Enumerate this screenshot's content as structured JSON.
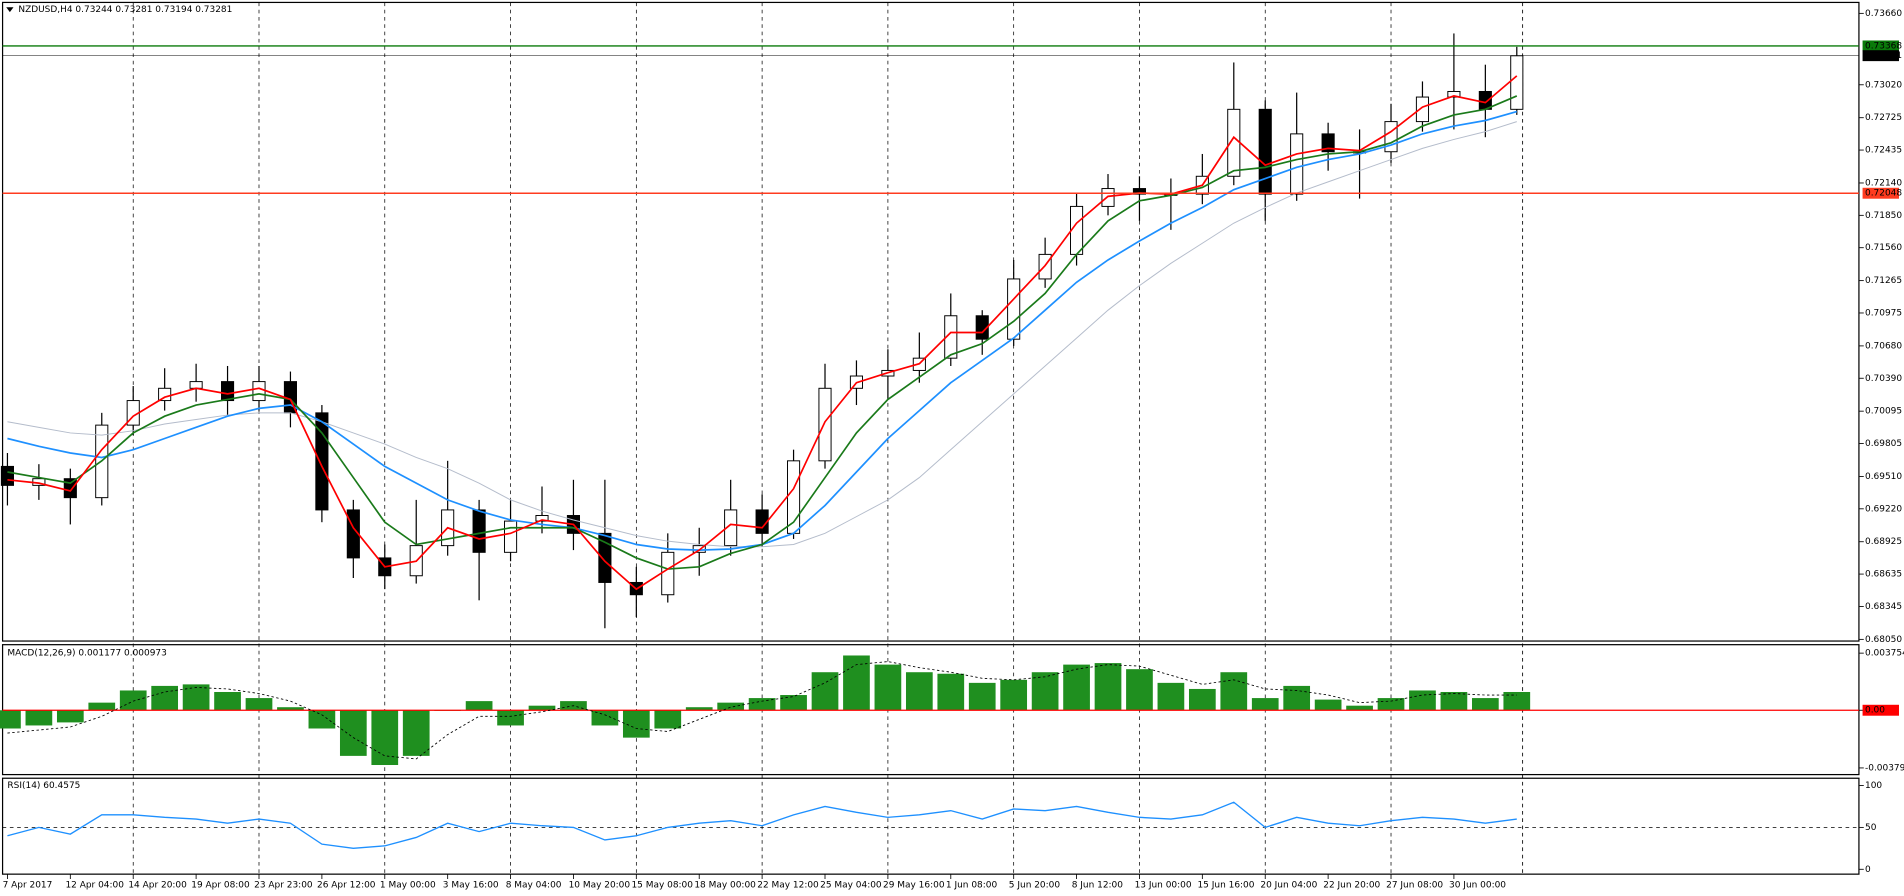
{
  "chart_data": [
    {
      "type": "candlestick",
      "title": "NZDUSD,H4  0.73244 0.73281 0.73194 0.73281",
      "categories": [
        "7 Apr 2017",
        null,
        "12 Apr 04:00",
        null,
        "14 Apr 20:00",
        null,
        "19 Apr 08:00",
        null,
        "23 Apr 23:00",
        null,
        "26 Apr 12:00",
        null,
        "1 May 00:00",
        null,
        "3 May 16:00",
        null,
        "8 May 04:00",
        null,
        "10 May 20:00",
        null,
        "15 May 08:00",
        null,
        "18 May 00:00",
        null,
        "22 May 12:00",
        null,
        "25 May 04:00",
        null,
        "29 May 16:00",
        null,
        "1 Jun 08:00",
        null,
        "5 Jun 20:00",
        null,
        "8 Jun 12:00",
        null,
        "13 Jun 00:00",
        null,
        "15 Jun 16:00",
        null,
        "20 Jun 04:00",
        null,
        "22 Jun 20:00",
        null,
        "27 Jun 08:00",
        null,
        "30 Jun 00:00",
        null,
        null
      ],
      "open": [
        0.696,
        0.6943,
        0.6949,
        0.6932,
        0.6997,
        0.7019,
        0.703,
        0.7036,
        0.7019,
        0.7036,
        0.7008,
        0.6921,
        0.6878,
        0.6862,
        0.6889,
        0.6921,
        0.6883,
        0.6911,
        0.6916,
        0.69,
        0.6856,
        0.6845,
        0.6883,
        0.6889,
        0.6921,
        0.69,
        0.6965,
        0.703,
        0.7041,
        0.7046,
        0.7057,
        0.7095,
        0.7074,
        0.7128,
        0.715,
        0.7193,
        0.7209,
        0.7204,
        0.7204,
        0.722,
        0.728,
        0.7204,
        0.7258,
        0.7242,
        0.7242,
        0.7269,
        0.7291,
        0.7296,
        0.728
      ],
      "high": [
        0.6972,
        0.6962,
        0.6958,
        0.7008,
        0.7032,
        0.7048,
        0.7052,
        0.705,
        0.705,
        0.7045,
        0.7015,
        0.693,
        0.689,
        0.693,
        0.6965,
        0.693,
        0.693,
        0.6942,
        0.6948,
        0.6948,
        0.687,
        0.69,
        0.6905,
        0.6948,
        0.6935,
        0.6975,
        0.7052,
        0.7055,
        0.7065,
        0.708,
        0.7115,
        0.71,
        0.7145,
        0.7165,
        0.7205,
        0.7222,
        0.722,
        0.7218,
        0.724,
        0.7322,
        0.7288,
        0.7295,
        0.7268,
        0.7262,
        0.7285,
        0.7305,
        0.7348,
        0.732,
        0.7336
      ],
      "low": [
        0.6925,
        0.693,
        0.6908,
        0.6925,
        0.6988,
        0.701,
        0.7018,
        0.7005,
        0.701,
        0.6995,
        0.691,
        0.686,
        0.685,
        0.6855,
        0.688,
        0.684,
        0.6875,
        0.69,
        0.6885,
        0.6815,
        0.6825,
        0.6838,
        0.6862,
        0.688,
        0.6888,
        0.6895,
        0.6958,
        0.7015,
        0.702,
        0.7035,
        0.705,
        0.706,
        0.7068,
        0.712,
        0.714,
        0.7185,
        0.718,
        0.7172,
        0.7195,
        0.7212,
        0.718,
        0.7198,
        0.7225,
        0.72,
        0.7232,
        0.726,
        0.7262,
        0.7255,
        0.7275
      ],
      "close": [
        0.6943,
        0.6949,
        0.6932,
        0.6997,
        0.7019,
        0.703,
        0.7036,
        0.7019,
        0.7036,
        0.7008,
        0.6921,
        0.6878,
        0.6862,
        0.6889,
        0.6921,
        0.6883,
        0.6911,
        0.6916,
        0.69,
        0.6856,
        0.6845,
        0.6883,
        0.6889,
        0.6921,
        0.69,
        0.6965,
        0.703,
        0.7041,
        0.7046,
        0.7057,
        0.7095,
        0.7074,
        0.7128,
        0.715,
        0.7193,
        0.7209,
        0.7204,
        0.7204,
        0.722,
        0.728,
        0.7204,
        0.7258,
        0.7242,
        0.7242,
        0.7269,
        0.7291,
        0.7296,
        0.728,
        0.7328
      ],
      "lines": [
        {
          "color": "#b4bccb",
          "values": [
            0.7,
            0.6995,
            0.699,
            0.6988,
            0.6992,
            0.6998,
            0.7002,
            0.7006,
            0.7008,
            0.7008,
            0.7,
            0.699,
            0.698,
            0.6968,
            0.6958,
            0.6945,
            0.693,
            0.692,
            0.6912,
            0.6905,
            0.6898,
            0.6893,
            0.689,
            0.6888,
            0.6888,
            0.689,
            0.69,
            0.6915,
            0.693,
            0.695,
            0.6975,
            0.7,
            0.7025,
            0.705,
            0.7075,
            0.71,
            0.7122,
            0.7142,
            0.716,
            0.7178,
            0.7192,
            0.7205,
            0.7215,
            0.7225,
            0.7235,
            0.7245,
            0.7253,
            0.726,
            0.7269
          ]
        },
        {
          "color": "#1e90ff",
          "values": [
            0.6985,
            0.6978,
            0.6972,
            0.6968,
            0.6975,
            0.6985,
            0.6995,
            0.7005,
            0.7012,
            0.7015,
            0.7,
            0.698,
            0.696,
            0.6945,
            0.693,
            0.692,
            0.6912,
            0.6908,
            0.6905,
            0.6898,
            0.689,
            0.6886,
            0.6885,
            0.6886,
            0.689,
            0.69,
            0.6925,
            0.6955,
            0.6985,
            0.701,
            0.7035,
            0.7055,
            0.7075,
            0.71,
            0.7125,
            0.7145,
            0.7162,
            0.7178,
            0.7192,
            0.7208,
            0.7218,
            0.7228,
            0.7235,
            0.724,
            0.7248,
            0.7258,
            0.7265,
            0.727,
            0.7278
          ]
        },
        {
          "color": "#1a7a1a",
          "values": [
            0.6955,
            0.695,
            0.6945,
            0.6965,
            0.699,
            0.7005,
            0.7015,
            0.702,
            0.7025,
            0.702,
            0.699,
            0.695,
            0.691,
            0.689,
            0.6895,
            0.69,
            0.6905,
            0.6905,
            0.6905,
            0.6892,
            0.6878,
            0.6868,
            0.687,
            0.6882,
            0.689,
            0.691,
            0.695,
            0.699,
            0.702,
            0.704,
            0.706,
            0.707,
            0.709,
            0.7115,
            0.715,
            0.718,
            0.7198,
            0.7203,
            0.721,
            0.7225,
            0.7228,
            0.7235,
            0.724,
            0.7242,
            0.725,
            0.7265,
            0.7275,
            0.728,
            0.7292
          ]
        },
        {
          "color": "#ff0000",
          "values": [
            0.6948,
            0.6945,
            0.6938,
            0.6975,
            0.7005,
            0.7022,
            0.703,
            0.7025,
            0.703,
            0.702,
            0.696,
            0.6905,
            0.687,
            0.6875,
            0.6905,
            0.6895,
            0.69,
            0.6912,
            0.6908,
            0.6875,
            0.685,
            0.6868,
            0.6885,
            0.6908,
            0.6905,
            0.694,
            0.7,
            0.7035,
            0.7044,
            0.7052,
            0.708,
            0.708,
            0.711,
            0.714,
            0.7178,
            0.7202,
            0.7205,
            0.7204,
            0.7212,
            0.7255,
            0.723,
            0.724,
            0.7245,
            0.7243,
            0.726,
            0.7282,
            0.7292,
            0.7286,
            0.731
          ]
        }
      ],
      "hlines": [
        {
          "value": 0.73368,
          "label": "0.73368",
          "color": "#0a7a0a"
        },
        {
          "value": 0.73281,
          "label": "0.73281",
          "color": "#000000"
        },
        {
          "value": 0.72048,
          "label": "0.72048",
          "color": "#ff3b1f"
        }
      ],
      "ylim": [
        0.68035,
        0.73758
      ],
      "yticks": [
        {
          "value": 0.7366,
          "label": "0.73660"
        },
        {
          "value": 0.7302,
          "label": "0.73020"
        },
        {
          "value": 0.72725,
          "label": "0.72725"
        },
        {
          "value": 0.72435,
          "label": "0.72435"
        },
        {
          "value": 0.7214,
          "label": "0.72140"
        },
        {
          "value": 0.7185,
          "label": "0.71850"
        },
        {
          "value": 0.7156,
          "label": "0.71560"
        },
        {
          "value": 0.71265,
          "label": "0.71265"
        },
        {
          "value": 0.70975,
          "label": "0.70975"
        },
        {
          "value": 0.7068,
          "label": "0.70680"
        },
        {
          "value": 0.7039,
          "label": "0.70390"
        },
        {
          "value": 0.70095,
          "label": "0.70095"
        },
        {
          "value": 0.69805,
          "label": "0.69805"
        },
        {
          "value": 0.6951,
          "label": "0.69510"
        },
        {
          "value": 0.6922,
          "label": "0.69220"
        },
        {
          "value": 0.68925,
          "label": "0.68925"
        },
        {
          "value": 0.68635,
          "label": "0.68635"
        },
        {
          "value": 0.68345,
          "label": "0.68345"
        },
        {
          "value": 0.6805,
          "label": "0.68050"
        }
      ]
    },
    {
      "type": "macd",
      "title": "MACD(12,26,9) 0.001177 0.000973",
      "color": "#1f8f1f",
      "values": [
        -0.0012,
        -0.001,
        -0.0008,
        0.0005,
        0.0013,
        0.0016,
        0.0017,
        0.0012,
        0.0008,
        0.0002,
        -0.0012,
        -0.003,
        -0.0036,
        -0.003,
        0.0,
        0.0006,
        -0.001,
        0.0003,
        0.0006,
        -0.001,
        -0.0018,
        -0.0012,
        0.0002,
        0.0005,
        0.0008,
        0.001,
        0.0025,
        0.0036,
        0.003,
        0.0025,
        0.0024,
        0.0018,
        0.002,
        0.0025,
        0.003,
        0.0031,
        0.0027,
        0.0018,
        0.0014,
        0.0025,
        0.0008,
        0.0016,
        0.0007,
        0.0003,
        0.0008,
        0.0013,
        0.0012,
        0.0008,
        0.0012
      ],
      "signal": [
        -0.0015,
        -0.0013,
        -0.0011,
        -0.0004,
        0.0006,
        0.0012,
        0.0015,
        0.0014,
        0.0011,
        0.0006,
        -0.0003,
        -0.0018,
        -0.003,
        -0.0032,
        -0.0016,
        -0.0004,
        -0.0004,
        -0.0001,
        0.0003,
        -0.0003,
        -0.0012,
        -0.0014,
        -0.0006,
        0.0002,
        0.0006,
        0.0009,
        0.0018,
        0.003,
        0.0032,
        0.0028,
        0.0025,
        0.0021,
        0.002,
        0.0022,
        0.0027,
        0.003,
        0.0029,
        0.0023,
        0.0017,
        0.002,
        0.0014,
        0.0013,
        0.001,
        0.0005,
        0.0006,
        0.001,
        0.0011,
        0.001,
        0.001
      ],
      "zero_color": "#ff0000",
      "ylim": [
        -0.00423,
        0.00431
      ],
      "yticks": [
        0.003754,
        {
          "value": 0,
          "label": "0.00"
        },
        -0.003792
      ]
    },
    {
      "type": "line",
      "title": "RSI(14) 60.4575",
      "color": "#1e90ff",
      "values": [
        40,
        50,
        42,
        65,
        65,
        62,
        60,
        55,
        60,
        55,
        30,
        25,
        28,
        38,
        55,
        45,
        55,
        52,
        50,
        35,
        40,
        50,
        55,
        58,
        52,
        65,
        75,
        68,
        62,
        65,
        70,
        60,
        72,
        70,
        75,
        68,
        62,
        60,
        65,
        80,
        50,
        62,
        55,
        52,
        58,
        62,
        60,
        55,
        60
      ],
      "level": 50,
      "ylim": [
        -5.8,
        108.7
      ],
      "yticks": [
        100,
        50,
        0
      ]
    }
  ]
}
